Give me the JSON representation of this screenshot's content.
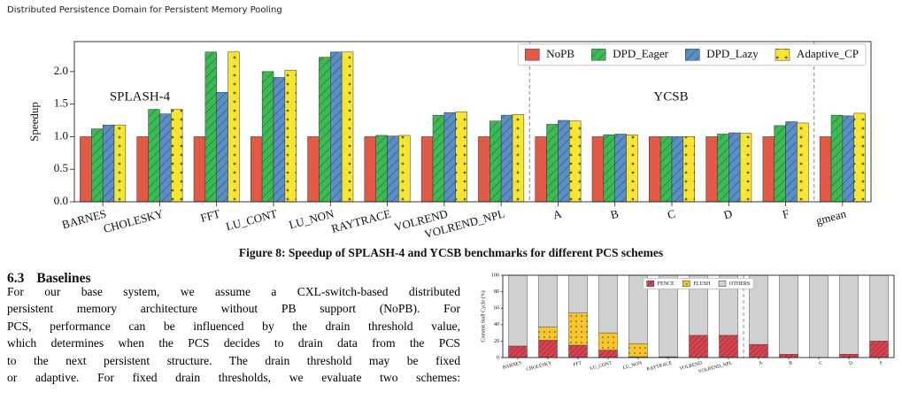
{
  "header": {
    "title": "Distributed Persistence Domain for Persistent Memory Pooling"
  },
  "chart_data": [
    {
      "type": "bar",
      "y_label": "Speedup",
      "categories": [
        "BARNES",
        "CHOLESKY",
        "FFT",
        "LU_CONT",
        "LU_NON",
        "RAYTRACE",
        "VOLREND",
        "VOLREND_NPL",
        "A",
        "B",
        "C",
        "D",
        "F",
        "gmean"
      ],
      "series": [
        {
          "name": "NoPB",
          "color": "#e05a46",
          "pattern": "none",
          "values": [
            1.0,
            1.0,
            1.0,
            1.0,
            1.0,
            1.0,
            1.0,
            1.0,
            1.0,
            1.0,
            1.0,
            1.0,
            1.0,
            1.0
          ]
        },
        {
          "name": "DPD_Eager",
          "color": "#3cb954",
          "pattern": "hatch",
          "values": [
            1.12,
            1.42,
            2.3,
            2.0,
            2.22,
            1.02,
            1.33,
            1.24,
            1.19,
            1.03,
            1.0,
            1.04,
            1.17,
            1.33
          ]
        },
        {
          "name": "DPD_Lazy",
          "color": "#5b8ec4",
          "pattern": "hatch",
          "values": [
            1.18,
            1.35,
            1.68,
            1.91,
            2.3,
            1.01,
            1.37,
            1.33,
            1.25,
            1.04,
            1.0,
            1.06,
            1.23,
            1.32
          ]
        },
        {
          "name": "Adaptive_CP",
          "color": "#f7e534",
          "pattern": "dots",
          "values": [
            1.18,
            1.42,
            2.3,
            2.02,
            2.3,
            1.02,
            1.38,
            1.34,
            1.24,
            1.03,
            1.0,
            1.05,
            1.21,
            1.36
          ]
        }
      ],
      "ylim": [
        0,
        2.46
      ],
      "yticks": [
        {
          "value": 0,
          "label": "0.0"
        },
        0.5,
        {
          "value": 1,
          "label": "1.0"
        },
        1.5,
        {
          "value": 2,
          "label": "2.0"
        }
      ],
      "annotations": [
        "SPLASH-4",
        "YCSB"
      ],
      "legend": "upper right"
    },
    {
      "type": "stacked_bar",
      "y_label": "Commit Stall Cycle (%)",
      "categories": [
        "BARNES",
        "CHOLESKY",
        "FFT",
        "LU_CONT",
        "LU_NON",
        "RAYTRACE",
        "VOLREND",
        "VOLREND_NPL",
        "A",
        "B",
        "C",
        "D",
        "F"
      ],
      "series": [
        {
          "name": "FENCE",
          "color": "#d9434f",
          "pattern": "hatch",
          "values": [
            14,
            21,
            15,
            9,
            1,
            1,
            27,
            27,
            16,
            4,
            0,
            4,
            20
          ]
        },
        {
          "name": "FLUSH",
          "color": "#f7c62f",
          "pattern": "dots",
          "values": [
            0,
            16,
            39,
            21,
            16,
            0,
            0,
            0,
            0,
            0,
            0,
            0,
            0
          ]
        },
        {
          "name": "OTHERS",
          "color": "#d0d0d0",
          "pattern": "none",
          "values": [
            86,
            63,
            46,
            70,
            83,
            99,
            73,
            73,
            84,
            96,
            100,
            96,
            80
          ]
        }
      ],
      "ylim": [
        0,
        100
      ],
      "yticks": [
        0,
        20,
        40,
        60,
        80,
        100
      ],
      "legend": "upper center"
    }
  ],
  "figure_caption": "Figure 8: Speedup of SPLASH-4 and YCSB benchmarks for different PCS schemes",
  "section": {
    "number": "6.3",
    "title": "Baselines"
  },
  "paragraph": {
    "lines": [
      "For our base system, we assume a CXL-switch-based distributed",
      "persistent memory architecture without PB support (NoPB). For",
      "PCS, performance can be influenced by the drain threshold value,",
      "which determines when the PCS decides to drain data from the PCS",
      "to the next persistent structure. The drain threshold may be fixed",
      "or adaptive. For fixed drain thresholds, we evaluate two schemes:"
    ]
  }
}
